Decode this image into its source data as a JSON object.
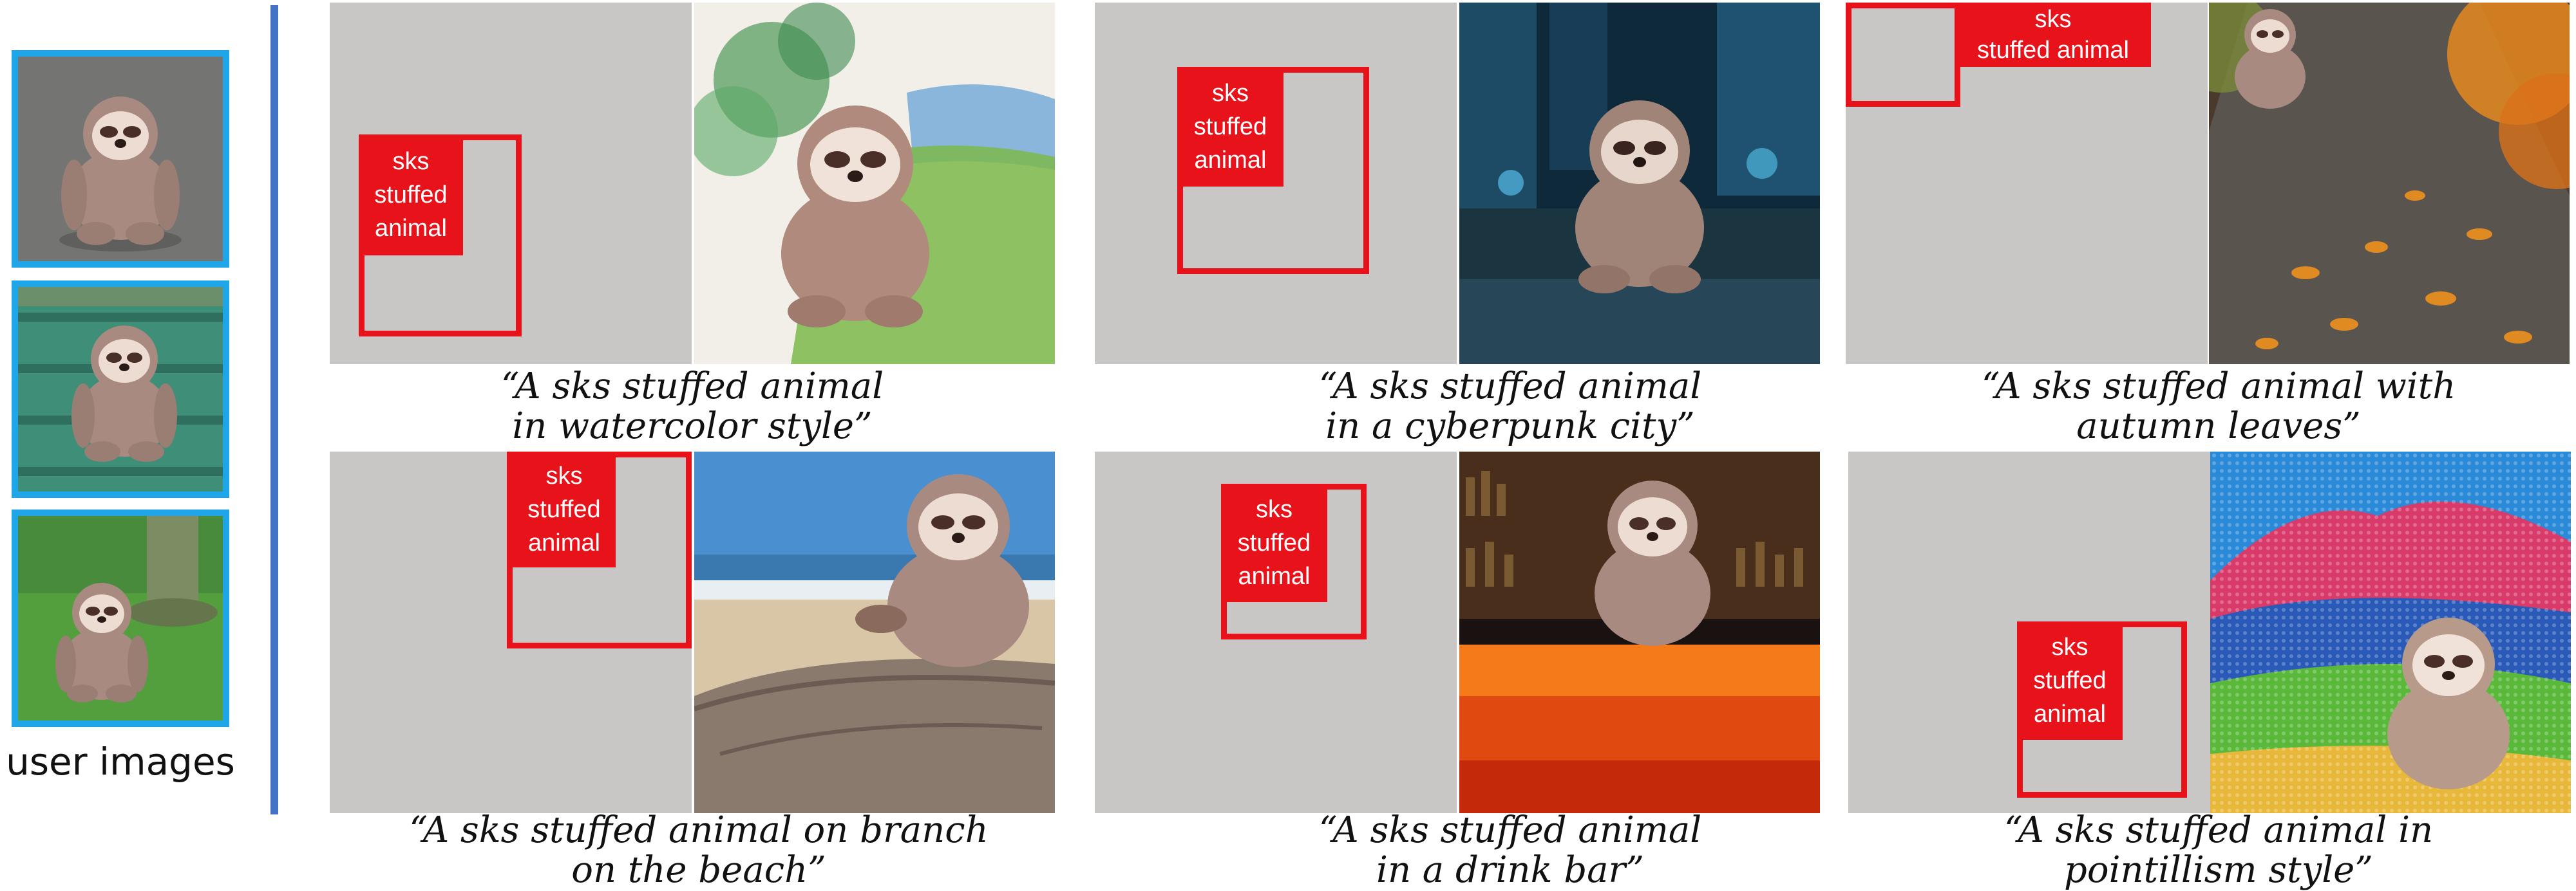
{
  "user_images": {
    "caption": "user images",
    "items": [
      {
        "scene": "asphalt",
        "toy": "sloth-plush"
      },
      {
        "scene": "bench",
        "toy": "sloth-plush"
      },
      {
        "scene": "grass",
        "toy": "sloth-plush"
      }
    ]
  },
  "examples": [
    {
      "label": "sks\nstuffed\nanimal",
      "prompt_line1": "“A sks stuffed animal",
      "prompt_line2": "in watercolor style”",
      "scene": "watercolor"
    },
    {
      "label": "sks\nstuffed\nanimal",
      "prompt_line1": "“A sks stuffed animal",
      "prompt_line2": "in a cyberpunk city”",
      "scene": "cyberpunk-city"
    },
    {
      "label": "sks\nstuffed animal",
      "prompt_line1": "“A sks stuffed animal with",
      "prompt_line2": "autumn leaves”",
      "scene": "autumn-path"
    },
    {
      "label": "sks\nstuffed\nanimal",
      "prompt_line1": "“A sks stuffed animal on branch",
      "prompt_line2": "on the beach”",
      "scene": "beach-branch"
    },
    {
      "label": "sks\nstuffed\nanimal",
      "prompt_line1": "“A sks stuffed animal",
      "prompt_line2": "in a drink bar”",
      "scene": "drink-bar"
    },
    {
      "label": "sks\nstuffed\nanimal",
      "prompt_line1": "“A sks stuffed animal in",
      "prompt_line2": "pointillism style”",
      "scene": "pointillism-mountains"
    }
  ],
  "colors": {
    "user_image_border": "#1ea6e8",
    "divider": "#4472c4",
    "layout_panel": "#c9c6c6",
    "region_box": "#e8121b",
    "label_text": "#ffffff"
  }
}
